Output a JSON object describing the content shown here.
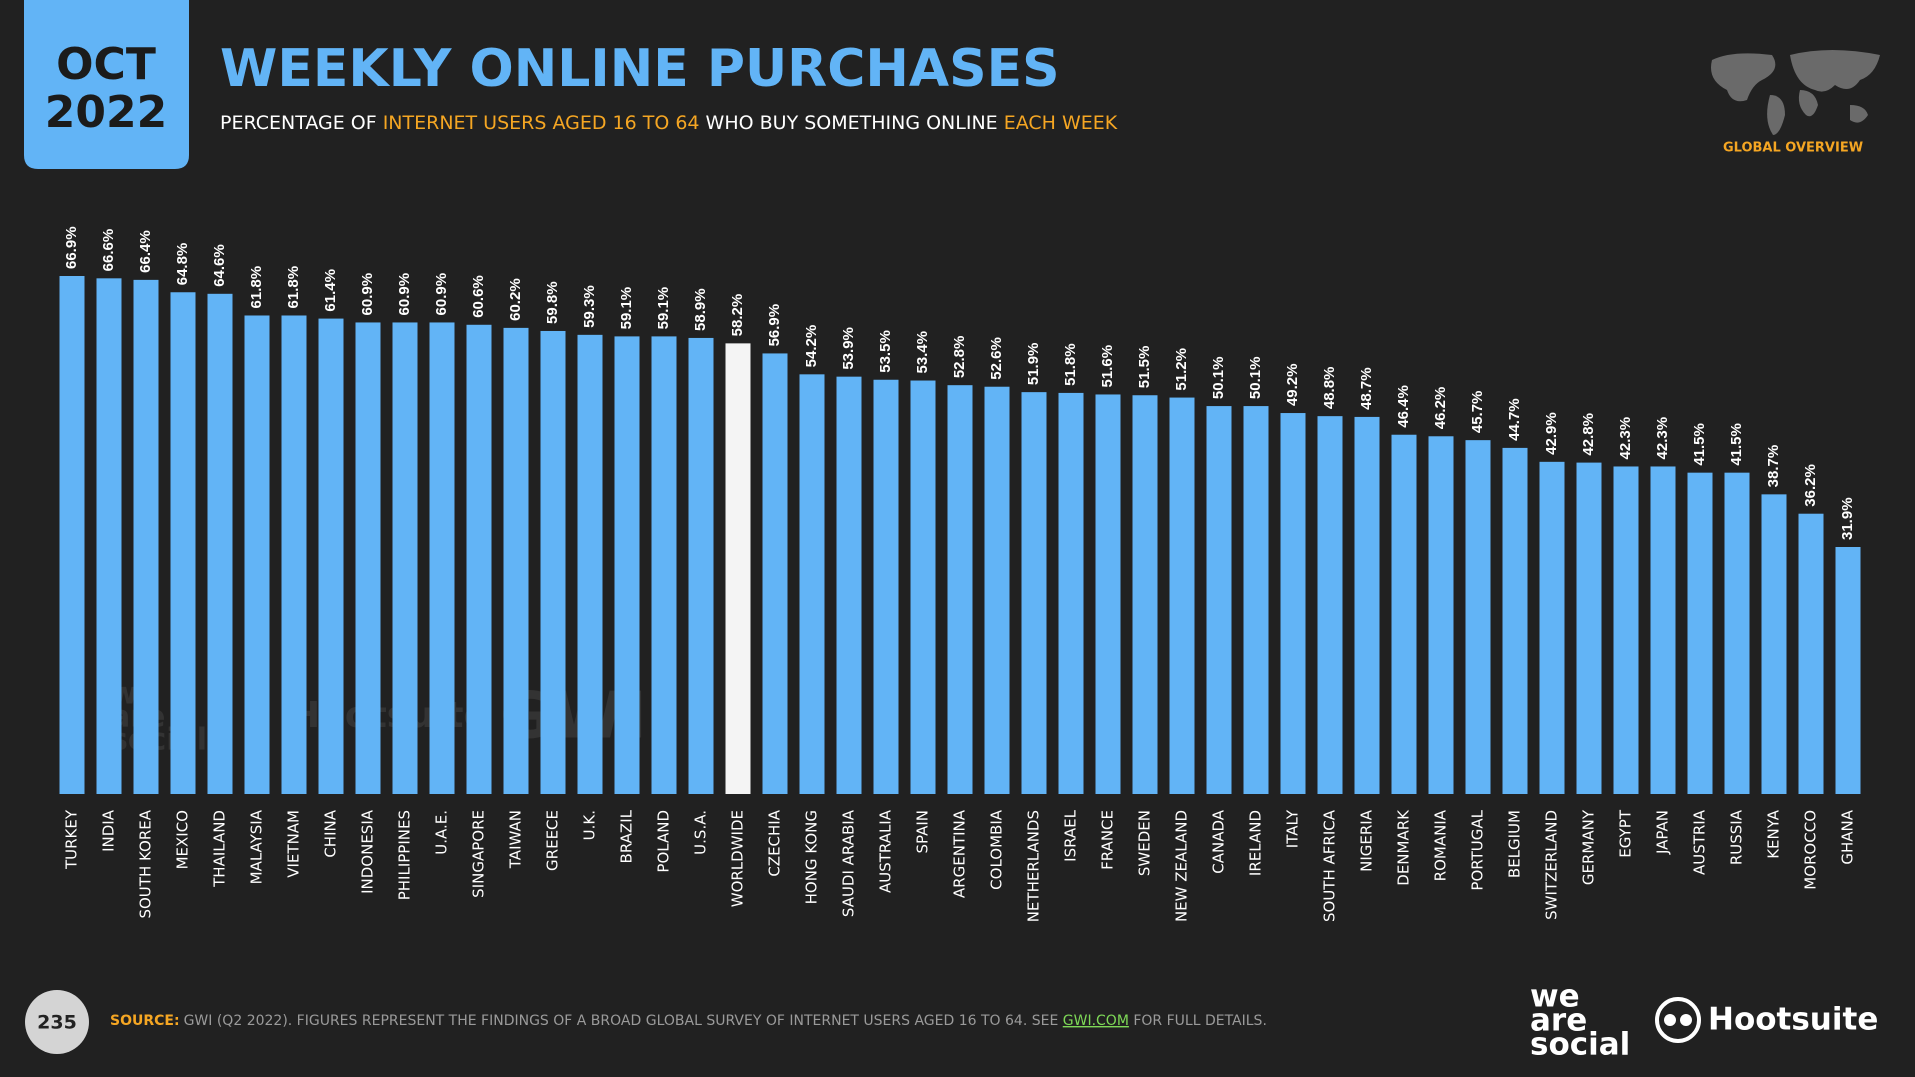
{
  "header": {
    "badge": [
      "OCT",
      "2022"
    ],
    "title": "WEEKLY ONLINE PURCHASES",
    "subtitle": [
      {
        "text": "PERCENTAGE OF ",
        "color": "#ffffff"
      },
      {
        "text": "INTERNET USERS AGED 16 TO 64",
        "color": "#f5a623"
      },
      {
        "text": " WHO BUY SOMETHING ONLINE ",
        "color": "#ffffff"
      },
      {
        "text": "EACH WEEK",
        "color": "#f5a623"
      }
    ],
    "section": "GLOBAL OVERVIEW"
  },
  "chart_data": {
    "type": "bar",
    "categories": [
      "TURKEY",
      "INDIA",
      "SOUTH KOREA",
      "MEXICO",
      "THAILAND",
      "MALAYSIA",
      "VIETNAM",
      "CHINA",
      "INDONESIA",
      "PHILIPPINES",
      "U.A.E.",
      "SINGAPORE",
      "TAIWAN",
      "GREECE",
      "U.K.",
      "BRAZIL",
      "POLAND",
      "U.S.A.",
      "WORLDWIDE",
      "CZECHIA",
      "HONG KONG",
      "SAUDI ARABIA",
      "AUSTRALIA",
      "SPAIN",
      "ARGENTINA",
      "COLOMBIA",
      "NETHERLANDS",
      "ISRAEL",
      "FRANCE",
      "SWEDEN",
      "NEW ZEALAND",
      "CANADA",
      "IRELAND",
      "ITALY",
      "SOUTH AFRICA",
      "NIGERIA",
      "DENMARK",
      "ROMANIA",
      "PORTUGAL",
      "BELGIUM",
      "SWITZERLAND",
      "GERMANY",
      "EGYPT",
      "JAPAN",
      "AUSTRIA",
      "RUSSIA",
      "KENYA",
      "MOROCCO",
      "GHANA"
    ],
    "values": [
      66.9,
      66.6,
      66.4,
      64.8,
      64.6,
      61.8,
      61.8,
      61.4,
      60.9,
      60.9,
      60.9,
      60.6,
      60.2,
      59.8,
      59.3,
      59.1,
      59.1,
      58.9,
      58.2,
      56.9,
      54.2,
      53.9,
      53.5,
      53.4,
      52.8,
      52.6,
      51.9,
      51.8,
      51.6,
      51.5,
      51.2,
      50.1,
      50.1,
      49.2,
      48.8,
      48.7,
      46.4,
      46.2,
      45.7,
      44.7,
      42.9,
      42.8,
      42.3,
      42.3,
      41.5,
      41.5,
      38.7,
      36.2,
      31.9
    ],
    "value_labels": [
      "66.9%",
      "66.6%",
      "66.4%",
      "64.8%",
      "64.6%",
      "61.8%",
      "61.8%",
      "61.4%",
      "60.9%",
      "60.9%",
      "60.9%",
      "60.6%",
      "60.2%",
      "59.8%",
      "59.3%",
      "59.1%",
      "59.1%",
      "58.9%",
      "58.2%",
      "56.9%",
      "54.2%",
      "53.9%",
      "53.5%",
      "53.4%",
      "52.8%",
      "52.6%",
      "51.9%",
      "51.8%",
      "51.6%",
      "51.5%",
      "51.2%",
      "50.1%",
      "50.1%",
      "49.2%",
      "48.8%",
      "48.7%",
      "46.4%",
      "46.2%",
      "45.7%",
      "44.7%",
      "42.9%",
      "42.8%",
      "42.3%",
      "42.3%",
      "41.5%",
      "41.5%",
      "38.7%",
      "36.2%",
      "31.9%"
    ],
    "colors": [
      "#62b4f6",
      "#62b4f6",
      "#62b4f6",
      "#62b4f6",
      "#62b4f6",
      "#62b4f6",
      "#62b4f6",
      "#62b4f6",
      "#62b4f6",
      "#62b4f6",
      "#62b4f6",
      "#62b4f6",
      "#62b4f6",
      "#62b4f6",
      "#62b4f6",
      "#62b4f6",
      "#62b4f6",
      "#62b4f6",
      "#f4f4f4",
      "#62b4f6",
      "#62b4f6",
      "#62b4f6",
      "#62b4f6",
      "#62b4f6",
      "#62b4f6",
      "#62b4f6",
      "#62b4f6",
      "#62b4f6",
      "#62b4f6",
      "#62b4f6",
      "#62b4f6",
      "#62b4f6",
      "#62b4f6",
      "#62b4f6",
      "#62b4f6",
      "#62b4f6",
      "#62b4f6",
      "#62b4f6",
      "#62b4f6",
      "#62b4f6",
      "#62b4f6",
      "#62b4f6",
      "#62b4f6",
      "#62b4f6",
      "#62b4f6",
      "#62b4f6",
      "#62b4f6",
      "#62b4f6",
      "#62b4f6"
    ]
  },
  "watermarks": {
    "was": [
      "we",
      "are",
      "social"
    ],
    "hootsuite": "Hootsuite",
    "gwi": "GWI."
  },
  "footer": {
    "page": "235",
    "source_label": "SOURCE:",
    "source_text": "GWI (Q2 2022). FIGURES REPRESENT THE FINDINGS OF A BROAD GLOBAL SURVEY OF INTERNET USERS AGED 16 TO 64. SEE ",
    "source_link": "GWI.COM",
    "source_end": " FOR FULL DETAILS.",
    "logo_was": [
      "we",
      "are",
      "social"
    ],
    "logo_hootsuite": "Hootsuite"
  }
}
